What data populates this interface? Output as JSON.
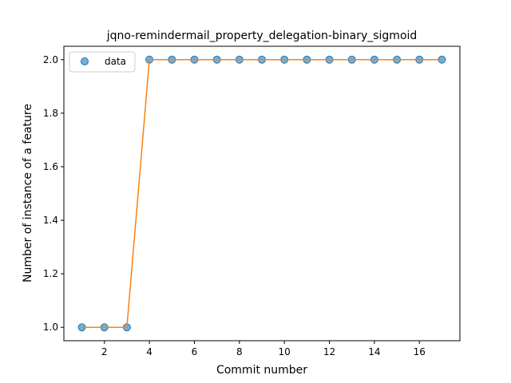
{
  "chart_data": {
    "type": "scatter",
    "title": "jqno-remindermail_property_delegation-binary_sigmoid",
    "xlabel": "Commit number",
    "ylabel": "Number of instance of a feature",
    "xlim": [
      0.2,
      17.8
    ],
    "ylim": [
      0.95,
      2.05
    ],
    "xticks": [
      2,
      4,
      6,
      8,
      10,
      12,
      14,
      16
    ],
    "yticks": [
      1.0,
      1.2,
      1.4,
      1.6,
      1.8,
      2.0
    ],
    "ytick_labels": [
      "1.0",
      "1.2",
      "1.4",
      "1.6",
      "1.8",
      "2.0"
    ],
    "legend_position": "top-left",
    "grid": false,
    "series": [
      {
        "name": "data",
        "kind": "scatter",
        "color": "#1f77b4",
        "x": [
          1,
          2,
          3,
          4,
          5,
          6,
          7,
          8,
          9,
          10,
          11,
          12,
          13,
          14,
          15,
          16,
          17
        ],
        "y": [
          1,
          1,
          1,
          2,
          2,
          2,
          2,
          2,
          2,
          2,
          2,
          2,
          2,
          2,
          2,
          2,
          2
        ]
      },
      {
        "kind": "line",
        "color": "#ff7f0e",
        "x": [
          1,
          2,
          3,
          4,
          5,
          6,
          7,
          8,
          9,
          10,
          11,
          12,
          13,
          14,
          15,
          16,
          17
        ],
        "y": [
          1,
          1,
          1,
          2,
          2,
          2,
          2,
          2,
          2,
          2,
          2,
          2,
          2,
          2,
          2,
          2,
          2
        ]
      }
    ]
  }
}
